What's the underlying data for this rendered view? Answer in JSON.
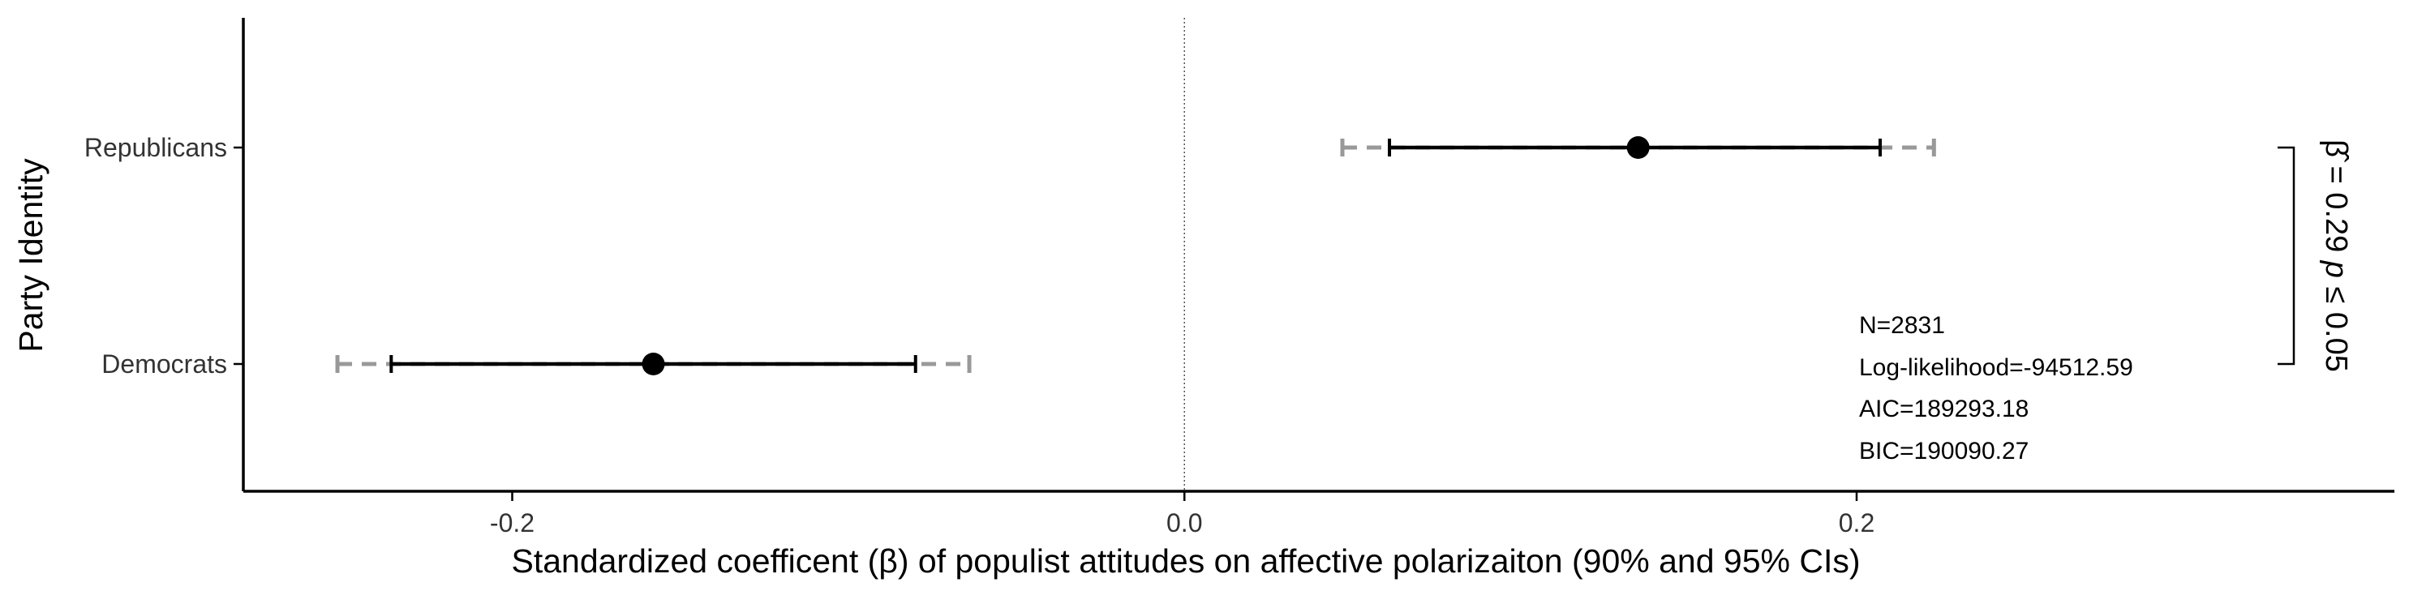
{
  "chart_data": {
    "type": "coefficient-plot",
    "xlabel": "Standardized coefficent (β) of populist attitudes on affective polarizaiton (90% and 95% CIs)",
    "ylabel": "Party Identity",
    "xlim": [
      -0.28,
      0.36
    ],
    "x_ticks": [
      -0.2,
      0.0,
      0.2
    ],
    "x_tick_labels": [
      "-0.2",
      "0.0",
      "0.2"
    ],
    "reference_line": 0.0,
    "grid": false,
    "categories": [
      "Republicans",
      "Democrats"
    ],
    "series": [
      {
        "estimate": 0.135,
        "ci90": [
          0.061,
          0.207
        ],
        "ci95": [
          0.047,
          0.223
        ]
      },
      {
        "estimate": -0.158,
        "ci90": [
          -0.236,
          -0.08
        ],
        "ci95": [
          -0.252,
          -0.064
        ]
      }
    ],
    "annotations": {
      "stats": [
        "N=2831",
        "Log-likelihood=-94512.59",
        "AIC=189293.18",
        "BIC=190090.27"
      ],
      "comparison": {
        "beta_symbol": "β̂",
        "beta_text": " = 0.29 ",
        "p_symbol": "p",
        "p_text": " ≤ 0.05"
      }
    },
    "colors": {
      "ci90": "#000000",
      "ci95": "#999999",
      "point": "#000000",
      "reference": "#555555"
    }
  }
}
